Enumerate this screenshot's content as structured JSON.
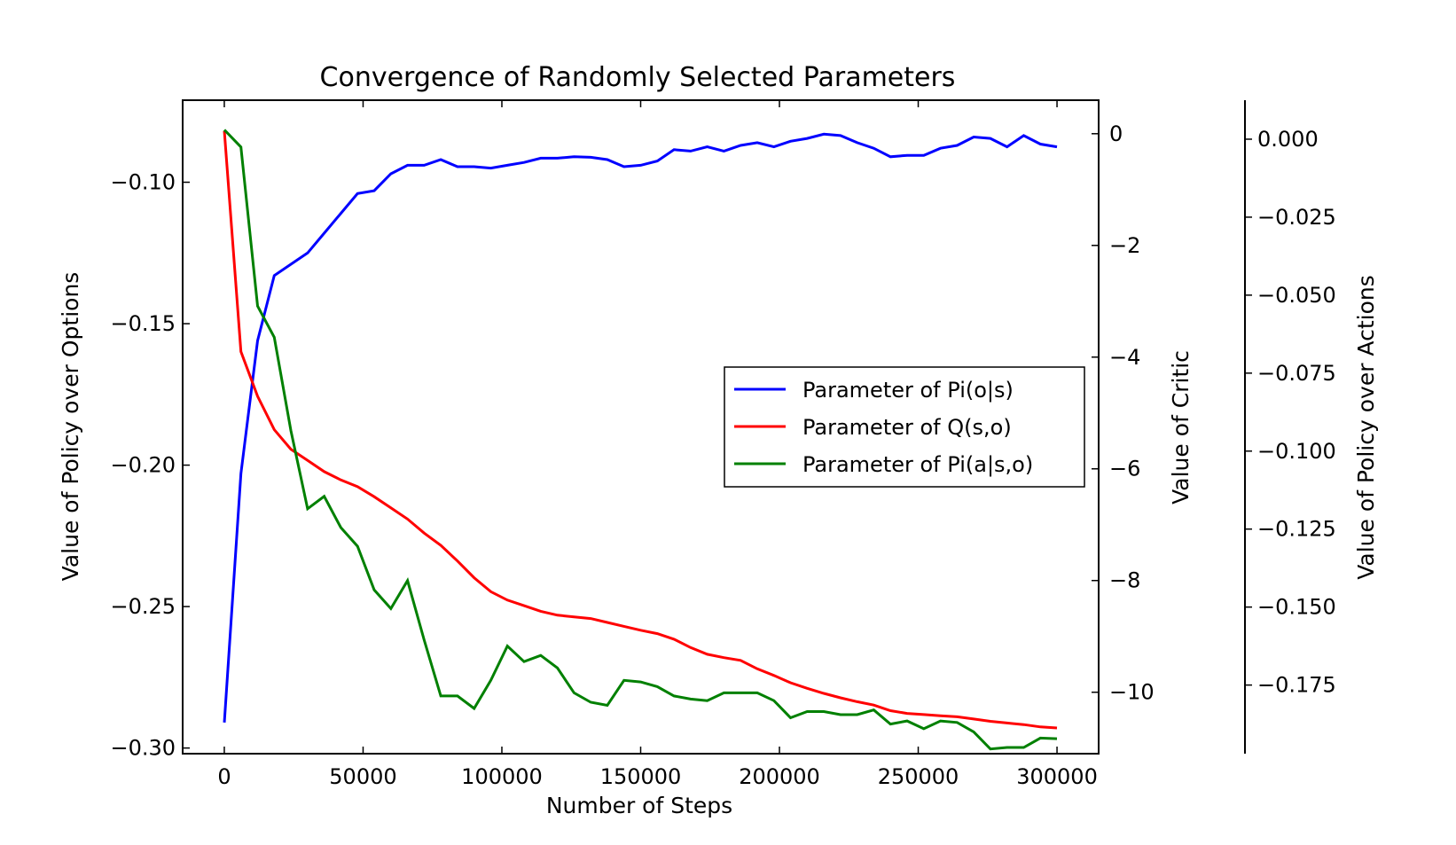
{
  "chart_data": {
    "type": "line",
    "title": "Convergence of Randomly Selected Parameters",
    "xlabel": "Number of Steps",
    "xlim": [
      -15000,
      315000
    ],
    "xticks": [
      0,
      50000,
      100000,
      150000,
      200000,
      250000,
      300000
    ],
    "xtick_labels": [
      "0",
      "50000",
      "100000",
      "150000",
      "200000",
      "250000",
      "300000"
    ],
    "x": [
      0,
      6000,
      12000,
      18000,
      24000,
      30000,
      36000,
      42000,
      48000,
      54000,
      60000,
      66000,
      72000,
      78000,
      84000,
      90000,
      96000,
      102000,
      108000,
      114000,
      120000,
      126000,
      132000,
      138000,
      144000,
      150000,
      156000,
      162000,
      168000,
      174000,
      180000,
      186000,
      192000,
      198000,
      204000,
      210000,
      216000,
      222000,
      228000,
      234000,
      240000,
      246000,
      252000,
      258000,
      264000,
      270000,
      276000,
      282000,
      288000,
      294000,
      300000
    ],
    "legend_position": "center-right",
    "axes": [
      {
        "id": "left",
        "label": "Value of Policy over Options",
        "color": "#0000ff",
        "ylim": [
          -0.302,
          -0.071
        ],
        "ticks": [
          -0.1,
          -0.15,
          -0.2,
          -0.25,
          -0.3
        ],
        "tick_labels": [
          "−0.10",
          "−0.15",
          "−0.20",
          "−0.25",
          "−0.30"
        ]
      },
      {
        "id": "right1",
        "label": "Value of Critic",
        "color": "#ff0000",
        "ylim": [
          -11.1,
          0.6
        ],
        "ticks": [
          0,
          -2,
          -4,
          -6,
          -8,
          -10
        ],
        "tick_labels": [
          "0",
          "−2",
          "−4",
          "−6",
          "−8",
          "−10"
        ]
      },
      {
        "id": "right2",
        "label": "Value of Policy over Actions",
        "color": "#008000",
        "ylim": [
          -0.197,
          0.0125
        ],
        "ticks": [
          0.0,
          -0.025,
          -0.05,
          -0.075,
          -0.1,
          -0.125,
          -0.15,
          -0.175
        ],
        "tick_labels": [
          "0.000",
          "−0.025",
          "−0.050",
          "−0.075",
          "−0.100",
          "−0.125",
          "−0.150",
          "−0.175"
        ]
      }
    ],
    "series": [
      {
        "name": "Parameter of Pi(o|s)",
        "axis": "left",
        "color": "#0000ff",
        "values": [
          -0.291,
          -0.203,
          -0.156,
          -0.133,
          -0.129,
          -0.125,
          -0.118,
          -0.111,
          -0.104,
          -0.103,
          -0.097,
          -0.094,
          -0.094,
          -0.092,
          -0.0945,
          -0.0945,
          -0.095,
          -0.094,
          -0.093,
          -0.0915,
          -0.0915,
          -0.091,
          -0.0912,
          -0.092,
          -0.0945,
          -0.094,
          -0.0925,
          -0.0885,
          -0.089,
          -0.0875,
          -0.089,
          -0.087,
          -0.086,
          -0.0875,
          -0.0855,
          -0.0845,
          -0.083,
          -0.0835,
          -0.086,
          -0.088,
          -0.091,
          -0.0905,
          -0.0905,
          -0.088,
          -0.087,
          -0.084,
          -0.0845,
          -0.0875,
          -0.0835,
          -0.0865,
          -0.0875
        ]
      },
      {
        "name": "Parameter of Q(s,o)",
        "axis": "right1",
        "color": "#ff0000",
        "values": [
          0.05,
          -3.9,
          -4.7,
          -5.3,
          -5.65,
          -5.85,
          -6.05,
          -6.2,
          -6.32,
          -6.5,
          -6.7,
          -6.9,
          -7.15,
          -7.37,
          -7.65,
          -7.95,
          -8.2,
          -8.35,
          -8.45,
          -8.55,
          -8.62,
          -8.65,
          -8.68,
          -8.75,
          -8.82,
          -8.89,
          -8.95,
          -9.05,
          -9.2,
          -9.32,
          -9.38,
          -9.43,
          -9.58,
          -9.7,
          -9.83,
          -9.93,
          -10.02,
          -10.1,
          -10.17,
          -10.23,
          -10.33,
          -10.38,
          -10.4,
          -10.42,
          -10.44,
          -10.48,
          -10.52,
          -10.55,
          -10.58,
          -10.62,
          -10.64
        ]
      },
      {
        "name": "Parameter of Pi(a|s,o)",
        "axis": "right2",
        "color": "#008000",
        "values": [
          0.003,
          -0.0025,
          -0.0535,
          -0.0635,
          -0.0935,
          -0.1185,
          -0.1145,
          -0.1245,
          -0.1305,
          -0.1445,
          -0.1505,
          -0.1415,
          -0.1605,
          -0.1785,
          -0.1785,
          -0.1825,
          -0.1735,
          -0.1625,
          -0.1675,
          -0.1655,
          -0.1695,
          -0.1775,
          -0.1805,
          -0.1815,
          -0.1735,
          -0.174,
          -0.1755,
          -0.1785,
          -0.1795,
          -0.18,
          -0.1775,
          -0.1775,
          -0.1775,
          -0.18,
          -0.1855,
          -0.1835,
          -0.1835,
          -0.1845,
          -0.1845,
          -0.183,
          -0.1875,
          -0.1865,
          -0.189,
          -0.1865,
          -0.187,
          -0.19,
          -0.1955,
          -0.195,
          -0.195,
          -0.192,
          -0.1922
        ]
      }
    ]
  }
}
